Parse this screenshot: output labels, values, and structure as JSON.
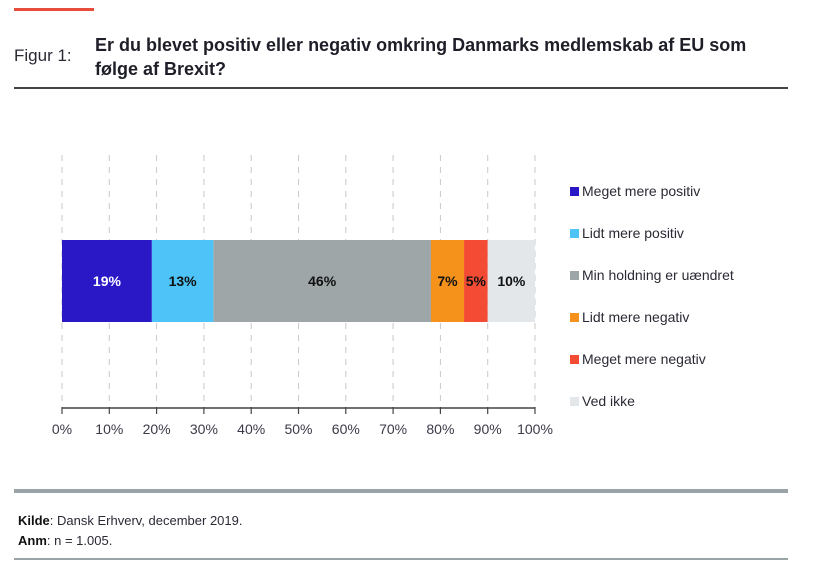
{
  "figure": {
    "label": "Figur 1:",
    "title": "Er du blevet positiv eller negativ omkring Danmarks medlemskab af EU som følge af Brexit?"
  },
  "chart_data": {
    "type": "bar",
    "orientation": "horizontal-stacked",
    "title": "Er du blevet positiv eller negativ omkring Danmarks medlemskab af EU som følge af Brexit?",
    "xlabel": "",
    "ylabel": "",
    "xlim": [
      0,
      100
    ],
    "x_ticks": [
      "0%",
      "10%",
      "20%",
      "30%",
      "40%",
      "50%",
      "60%",
      "70%",
      "80%",
      "90%",
      "100%"
    ],
    "grid": "vertical dashed",
    "legend_position": "right",
    "categories": [
      ""
    ],
    "series": [
      {
        "name": "Meget mere positiv",
        "values": [
          19
        ],
        "label": "19%",
        "color": "#2a17c6",
        "label_color": "#ffffff"
      },
      {
        "name": "Lidt mere positiv",
        "values": [
          13
        ],
        "label": "13%",
        "color": "#4dc3f7",
        "label_color": "#111111"
      },
      {
        "name": "Min holdning er uændret",
        "values": [
          46
        ],
        "label": "46%",
        "color": "#9fa6a8",
        "label_color": "#111111"
      },
      {
        "name": "Lidt mere negativ",
        "values": [
          7
        ],
        "label": "7%",
        "color": "#f5921b",
        "label_color": "#111111"
      },
      {
        "name": "Meget mere negativ",
        "values": [
          5
        ],
        "label": "5%",
        "color": "#f44b35",
        "label_color": "#111111"
      },
      {
        "name": "Ved ikke",
        "values": [
          10
        ],
        "label": "10%",
        "color": "#e3e7ea",
        "label_color": "#111111"
      }
    ]
  },
  "notes": {
    "source_label": "Kilde",
    "source_text": ": Dansk Erhverv, december 2019.",
    "note_label": "Anm",
    "note_text": ": n = 1.005."
  }
}
